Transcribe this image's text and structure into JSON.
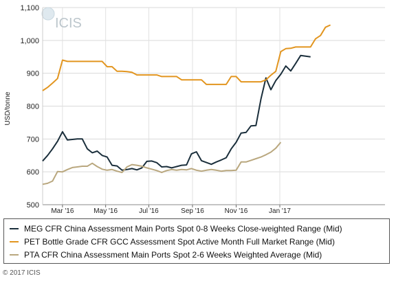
{
  "chart_data": {
    "type": "line",
    "ylabel": "USD/tonne",
    "ylim": [
      500,
      1100
    ],
    "yticks": [
      500,
      600,
      700,
      800,
      900,
      1000,
      1100
    ],
    "ytick_labels": [
      "500",
      "600",
      "700",
      "800",
      "900",
      "1,000",
      "1,100"
    ],
    "xlim": [
      0,
      69
    ],
    "xticks": [
      {
        "pos": 4,
        "label": "Mar '16"
      },
      {
        "pos": 12.7,
        "label": "May '16"
      },
      {
        "pos": 21.4,
        "label": "Jul '16"
      },
      {
        "pos": 30.2,
        "label": "Sep '16"
      },
      {
        "pos": 39,
        "label": "Nov '16"
      },
      {
        "pos": 47.8,
        "label": "Jan '17"
      }
    ],
    "grid": true,
    "legend_position": "bottom",
    "logo_text": "ICIS",
    "series": [
      {
        "name": "MEG CFR China Assessment Main Ports Spot 0-8 Weeks Close-weighted Range (Mid)",
        "color": "#1a2e3b",
        "points": [
          [
            0,
            633
          ],
          [
            1,
            650
          ],
          [
            2,
            670
          ],
          [
            3,
            693
          ],
          [
            4,
            722
          ],
          [
            5,
            697
          ],
          [
            7,
            700
          ],
          [
            8,
            700
          ],
          [
            9,
            670
          ],
          [
            10,
            658
          ],
          [
            11,
            663
          ],
          [
            12,
            650
          ],
          [
            13,
            645
          ],
          [
            14,
            620
          ],
          [
            15,
            618
          ],
          [
            16,
            605
          ],
          [
            17,
            607
          ],
          [
            18,
            610
          ],
          [
            19,
            606
          ],
          [
            20,
            612
          ],
          [
            21,
            632
          ],
          [
            22,
            633
          ],
          [
            23,
            628
          ],
          [
            24,
            615
          ],
          [
            25,
            616
          ],
          [
            26,
            612
          ],
          [
            27,
            616
          ],
          [
            28,
            620
          ],
          [
            29,
            621
          ],
          [
            30,
            655
          ],
          [
            31,
            661
          ],
          [
            32,
            634
          ],
          [
            34,
            623
          ],
          [
            35,
            630
          ],
          [
            36,
            636
          ],
          [
            37,
            643
          ],
          [
            38,
            670
          ],
          [
            39,
            690
          ],
          [
            40,
            718
          ],
          [
            41,
            720
          ],
          [
            42,
            740
          ],
          [
            43,
            741
          ],
          [
            44,
            822
          ],
          [
            45,
            886
          ],
          [
            46,
            850
          ],
          [
            47,
            878
          ],
          [
            48,
            897
          ],
          [
            49,
            922
          ],
          [
            50,
            907
          ],
          [
            51,
            930
          ],
          [
            52,
            954
          ],
          [
            54,
            950
          ]
        ]
      },
      {
        "name": "PET Bottle Grade CFR GCC Assessment Spot Active Month Full Market Range (Mid)",
        "color": "#e2951f",
        "points": [
          [
            0,
            847
          ],
          [
            1,
            857
          ],
          [
            2,
            870
          ],
          [
            3,
            884
          ],
          [
            4,
            940
          ],
          [
            5,
            936
          ],
          [
            12,
            936
          ],
          [
            13,
            920
          ],
          [
            14,
            920
          ],
          [
            15,
            906
          ],
          [
            16,
            906
          ],
          [
            17,
            905
          ],
          [
            18,
            903
          ],
          [
            19,
            895
          ],
          [
            23,
            895
          ],
          [
            24,
            890
          ],
          [
            27,
            890
          ],
          [
            28,
            880
          ],
          [
            32,
            880
          ],
          [
            33,
            866
          ],
          [
            37,
            866
          ],
          [
            38,
            890
          ],
          [
            39,
            890
          ],
          [
            40,
            874
          ],
          [
            44,
            874
          ],
          [
            45,
            880
          ],
          [
            46,
            894
          ],
          [
            47,
            906
          ],
          [
            48,
            966
          ],
          [
            49,
            975
          ],
          [
            50,
            976
          ],
          [
            51,
            980
          ],
          [
            54,
            980
          ],
          [
            55,
            1005
          ],
          [
            56,
            1015
          ],
          [
            57,
            1040
          ],
          [
            58,
            1047
          ]
        ]
      },
      {
        "name": "PTA CFR China Assessment Main Ports Spot 2-6 Weeks Weighted Average (Mid)",
        "color": "#b9a77e",
        "points": [
          [
            0,
            562
          ],
          [
            1,
            565
          ],
          [
            2,
            572
          ],
          [
            3,
            601
          ],
          [
            4,
            600
          ],
          [
            5,
            607
          ],
          [
            6,
            613
          ],
          [
            7,
            615
          ],
          [
            8,
            617
          ],
          [
            9,
            617
          ],
          [
            10,
            626
          ],
          [
            11,
            616
          ],
          [
            12,
            608
          ],
          [
            13,
            605
          ],
          [
            14,
            607
          ],
          [
            15,
            602
          ],
          [
            16,
            598
          ],
          [
            17,
            615
          ],
          [
            18,
            622
          ],
          [
            19,
            620
          ],
          [
            20,
            617
          ],
          [
            21,
            612
          ],
          [
            22,
            608
          ],
          [
            23,
            604
          ],
          [
            24,
            598
          ],
          [
            25,
            604
          ],
          [
            26,
            607
          ],
          [
            27,
            605
          ],
          [
            28,
            607
          ],
          [
            29,
            606
          ],
          [
            30,
            610
          ],
          [
            31,
            605
          ],
          [
            32,
            602
          ],
          [
            33,
            605
          ],
          [
            34,
            607
          ],
          [
            35,
            605
          ],
          [
            36,
            602
          ],
          [
            37,
            604
          ],
          [
            38,
            604
          ],
          [
            39,
            605
          ],
          [
            40,
            630
          ],
          [
            41,
            630
          ],
          [
            42,
            635
          ],
          [
            43,
            640
          ],
          [
            44,
            645
          ],
          [
            45,
            652
          ],
          [
            46,
            660
          ],
          [
            47,
            672
          ],
          [
            48,
            690
          ]
        ]
      }
    ]
  },
  "footer": {
    "copyright": "© 2017 ICIS"
  }
}
